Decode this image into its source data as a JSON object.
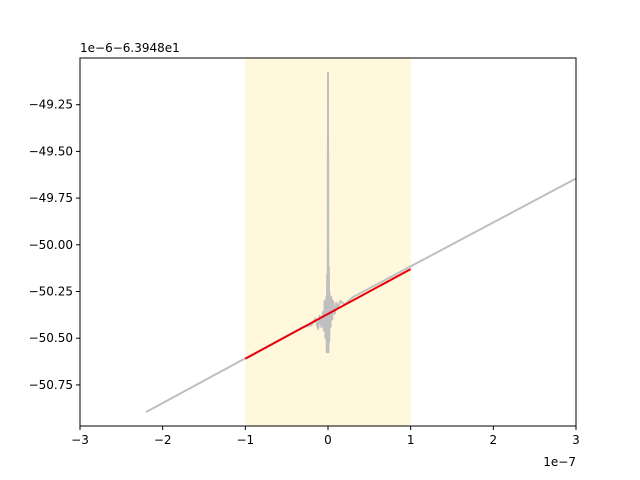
{
  "chart_data": {
    "type": "line",
    "title": "",
    "xlabel": "",
    "ylabel": "",
    "x_offset_label": "1e−7",
    "y_offset_label": "1e−6−6.3948e1",
    "xlim": [
      -3,
      3
    ],
    "ylim": [
      -50.97,
      -49.0
    ],
    "x_ticks": [
      -3,
      -2,
      -1,
      0,
      1,
      2,
      3
    ],
    "x_tick_labels": [
      "−3",
      "−2",
      "−1",
      "0",
      "1",
      "2",
      "3"
    ],
    "y_ticks": [
      -50.75,
      -50.5,
      -50.25,
      -50.0,
      -49.75,
      -49.5,
      -49.25
    ],
    "y_tick_labels": [
      "−50.75",
      "−50.50",
      "−50.25",
      "−50.00",
      "−49.75",
      "−49.50",
      "−49.25"
    ],
    "grid": false,
    "span": {
      "x": [
        -1,
        1
      ],
      "color": "#fff8dc"
    },
    "series": [
      {
        "color": "#bfbfbf",
        "x": [
          -2.2,
          -0.3,
          -0.2,
          -0.15,
          -0.12,
          -0.1,
          -0.08,
          -0.06,
          -0.05,
          -0.04,
          -0.03,
          -0.02,
          -0.015,
          -0.01,
          -0.005,
          0.0,
          0.005,
          0.01,
          0.015,
          0.02,
          0.03,
          0.04,
          0.05,
          0.06,
          0.08,
          0.1,
          0.12,
          0.15,
          0.2,
          0.3,
          3.0
        ],
        "y": [
          -50.895,
          -50.44,
          -50.43,
          -50.395,
          -50.45,
          -50.38,
          -50.44,
          -50.36,
          -50.46,
          -50.3,
          -50.5,
          -50.28,
          -50.575,
          -50.16,
          -50.575,
          -49.08,
          -50.575,
          -50.12,
          -50.52,
          -50.26,
          -50.44,
          -50.28,
          -50.4,
          -50.3,
          -50.37,
          -50.31,
          -50.34,
          -50.3,
          -50.32,
          -50.28,
          -49.645
        ]
      },
      {
        "color": "#e8000b",
        "x": [
          -1,
          1
        ],
        "y": [
          -50.61,
          -50.13
        ]
      }
    ]
  }
}
